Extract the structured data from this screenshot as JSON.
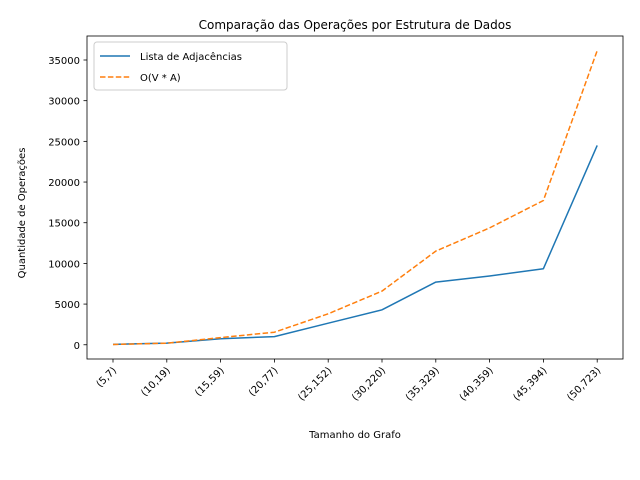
{
  "chart_data": {
    "type": "line",
    "title": "Comparação das Operações por Estrutura de Dados",
    "xlabel": "Tamanho do Grafo",
    "ylabel": "Quantidade de Operações",
    "categories": [
      "(5,7)",
      "(10,19)",
      "(15,59)",
      "(20,77)",
      "(25,152)",
      "(30,220)",
      "(35,329)",
      "(40,359)",
      "(45,394)",
      "(50,723)"
    ],
    "series": [
      {
        "name": "Lista de Adjacências",
        "values": [
          50,
          200,
          750,
          1000,
          2650,
          4300,
          7700,
          8450,
          9350,
          24500
        ],
        "color": "#1f77b4",
        "style": "solid"
      },
      {
        "name": "O(V * A)",
        "values": [
          35,
          190,
          885,
          1540,
          3800,
          6600,
          11515,
          14360,
          17730,
          36150
        ],
        "color": "#ff7f0e",
        "style": "dashed"
      }
    ],
    "ylim": [
      -1750,
      37950
    ],
    "yticks": [
      0,
      5000,
      10000,
      15000,
      20000,
      25000,
      30000,
      35000
    ],
    "grid": false,
    "legend": "top-left"
  }
}
